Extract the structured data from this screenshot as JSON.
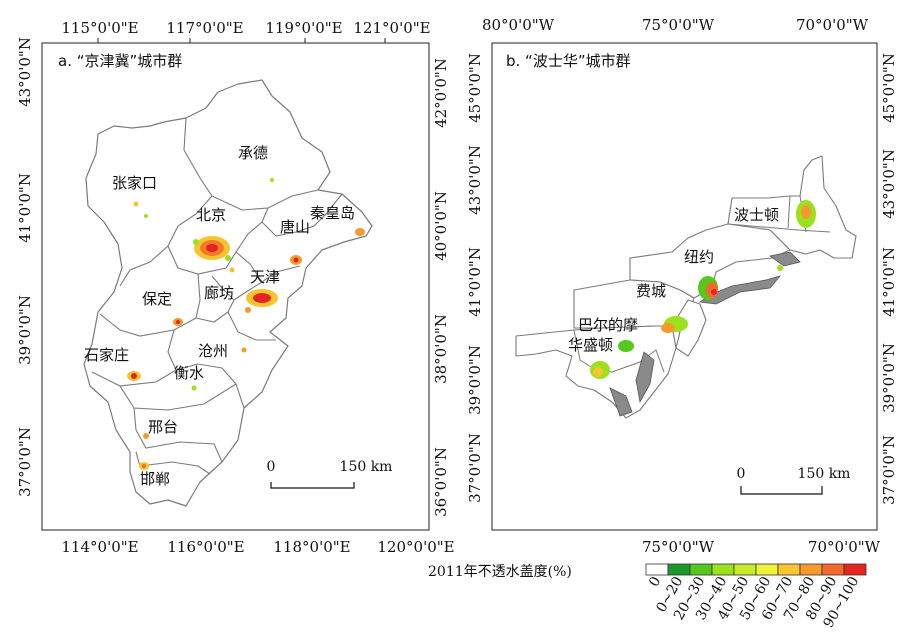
{
  "panel_a": {
    "title": "a. “京津冀”城市群",
    "top_ticks": [
      "115°0'0\"E",
      "117°0'0\"E",
      "119°0'0\"E",
      "121°0'0\"E"
    ],
    "bottom_ticks": [
      "114°0'0\"E",
      "116°0'0\"E",
      "118°0'0\"E",
      "120°0'0\"E"
    ],
    "left_ticks": [
      "43°0'0\"N",
      "41°0'0\"N",
      "39°0'0\"N",
      "37°0'0\"N"
    ],
    "right_ticks": [
      "42°0'0\"N",
      "40°0'0\"N",
      "38°0'0\"N",
      "36°0'0\"N"
    ],
    "cities": [
      "承德",
      "张家口",
      "北京",
      "秦皇岛",
      "唐山",
      "天津",
      "廊坊",
      "保定",
      "沧州",
      "石家庄",
      "衡水",
      "邢台",
      "邯郸"
    ],
    "scale": {
      "zero": "0",
      "distance": "150 km"
    }
  },
  "panel_b": {
    "title": "b. “波士华”城市群",
    "top_ticks": [
      "80°0'0\"W",
      "75°0'0\"W",
      "70°0'0\"W"
    ],
    "bottom_ticks": [
      "75°0'0\"W",
      "70°0'0\"W"
    ],
    "left_ticks": [
      "45°0'0\"N",
      "43°0'0\"N",
      "41°0'0\"N",
      "39°0'0\"N",
      "37°0'0\"N"
    ],
    "right_ticks": [
      "45°0'0\"N",
      "43°0'0\"N",
      "41°0'0\"N",
      "39°0'0\"N",
      "37°0'0\"N"
    ],
    "cities": [
      "波士顿",
      "纽约",
      "费城",
      "巴尔的摩",
      "华盛顿"
    ],
    "scale": {
      "zero": "0",
      "distance": "150 km"
    }
  },
  "legend": {
    "title": "2011年不透水盖度(%)",
    "classes": [
      "0",
      "0~20",
      "20~30",
      "30~40",
      "40~50",
      "50~60",
      "60~70",
      "70~80",
      "80~90",
      "90~100"
    ],
    "colors": [
      "#ffffff",
      "#1a9a2a",
      "#55c81e",
      "#9be21c",
      "#c8ea2a",
      "#eef23a",
      "#f9c632",
      "#f69a2e",
      "#f36a2a",
      "#e52620"
    ]
  }
}
